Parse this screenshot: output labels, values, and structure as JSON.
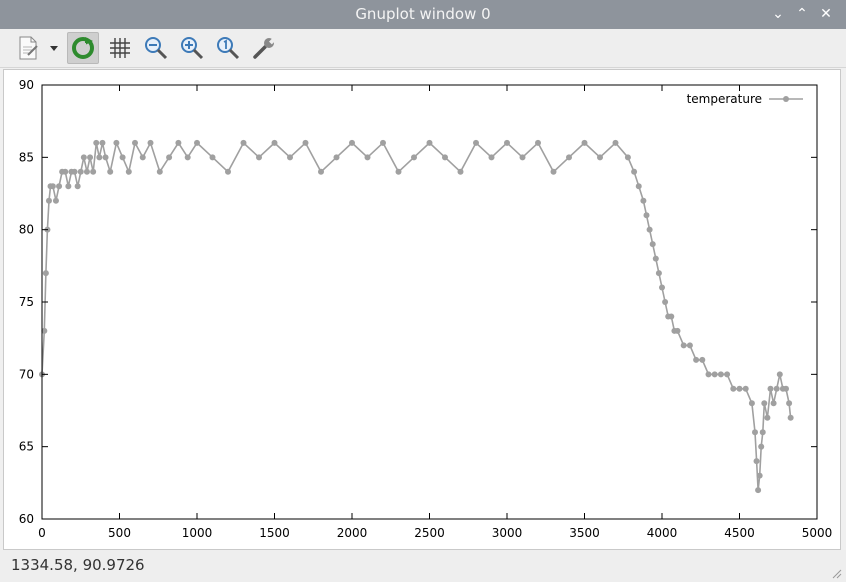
{
  "window": {
    "title": "Gnuplot window 0"
  },
  "window_controls": {
    "minimize": "⌄",
    "maximize": "⌃",
    "close": "✕"
  },
  "toolbar": {
    "icons": [
      "copy-to-clipboard-icon",
      "dropdown-arrow-icon",
      "replot-icon",
      "grid-icon",
      "zoom-out-icon",
      "zoom-in-icon",
      "zoom-reset-icon",
      "settings-wrench-icon"
    ],
    "colors": {
      "replot": "#2e8b2e",
      "icon": "#3d7ab8"
    }
  },
  "status": {
    "coordinates": "1334.58,  90.9726"
  },
  "chart_data": {
    "type": "line",
    "title": "",
    "xlabel": "",
    "ylabel": "",
    "xlim": [
      0,
      5000
    ],
    "ylim": [
      60,
      90
    ],
    "x_ticks": [
      "0",
      "500",
      "1000",
      "1500",
      "2000",
      "2500",
      "3000",
      "3500",
      "4000",
      "4500",
      "5000"
    ],
    "y_ticks": [
      "60",
      "65",
      "70",
      "75",
      "80",
      "85",
      "90"
    ],
    "grid": false,
    "legend_placement": "top-right",
    "series": [
      {
        "name": "temperature",
        "color": "#a0a0a0",
        "x": [
          0,
          15,
          25,
          35,
          45,
          55,
          70,
          90,
          110,
          130,
          150,
          170,
          190,
          210,
          230,
          250,
          270,
          290,
          310,
          330,
          350,
          370,
          390,
          410,
          440,
          480,
          520,
          560,
          600,
          650,
          700,
          760,
          820,
          880,
          940,
          1000,
          1100,
          1200,
          1300,
          1400,
          1500,
          1600,
          1700,
          1800,
          1900,
          2000,
          2100,
          2200,
          2300,
          2400,
          2500,
          2600,
          2700,
          2800,
          2900,
          3000,
          3100,
          3200,
          3300,
          3400,
          3500,
          3600,
          3700,
          3780,
          3820,
          3850,
          3880,
          3900,
          3920,
          3940,
          3960,
          3980,
          4000,
          4020,
          4040,
          4060,
          4080,
          4100,
          4140,
          4180,
          4220,
          4260,
          4300,
          4340,
          4380,
          4420,
          4460,
          4500,
          4540,
          4580,
          4600,
          4610,
          4620,
          4630,
          4640,
          4650,
          4660,
          4680,
          4700,
          4720,
          4740,
          4760,
          4780,
          4800,
          4820,
          4830
        ],
        "y": [
          70,
          73,
          77,
          80,
          82,
          83,
          83,
          82,
          83,
          84,
          84,
          83,
          84,
          84,
          83,
          84,
          85,
          84,
          85,
          84,
          86,
          85,
          86,
          85,
          84,
          86,
          85,
          84,
          86,
          85,
          86,
          84,
          85,
          86,
          85,
          86,
          85,
          84,
          86,
          85,
          86,
          85,
          86,
          84,
          85,
          86,
          85,
          86,
          84,
          85,
          86,
          85,
          84,
          86,
          85,
          86,
          85,
          86,
          84,
          85,
          86,
          85,
          86,
          85,
          84,
          83,
          82,
          81,
          80,
          79,
          78,
          77,
          76,
          75,
          74,
          74,
          73,
          73,
          72,
          72,
          71,
          71,
          70,
          70,
          70,
          70,
          69,
          69,
          69,
          68,
          66,
          64,
          62,
          63,
          65,
          66,
          68,
          67,
          69,
          68,
          69,
          70,
          69,
          69,
          68,
          67
        ]
      }
    ]
  }
}
